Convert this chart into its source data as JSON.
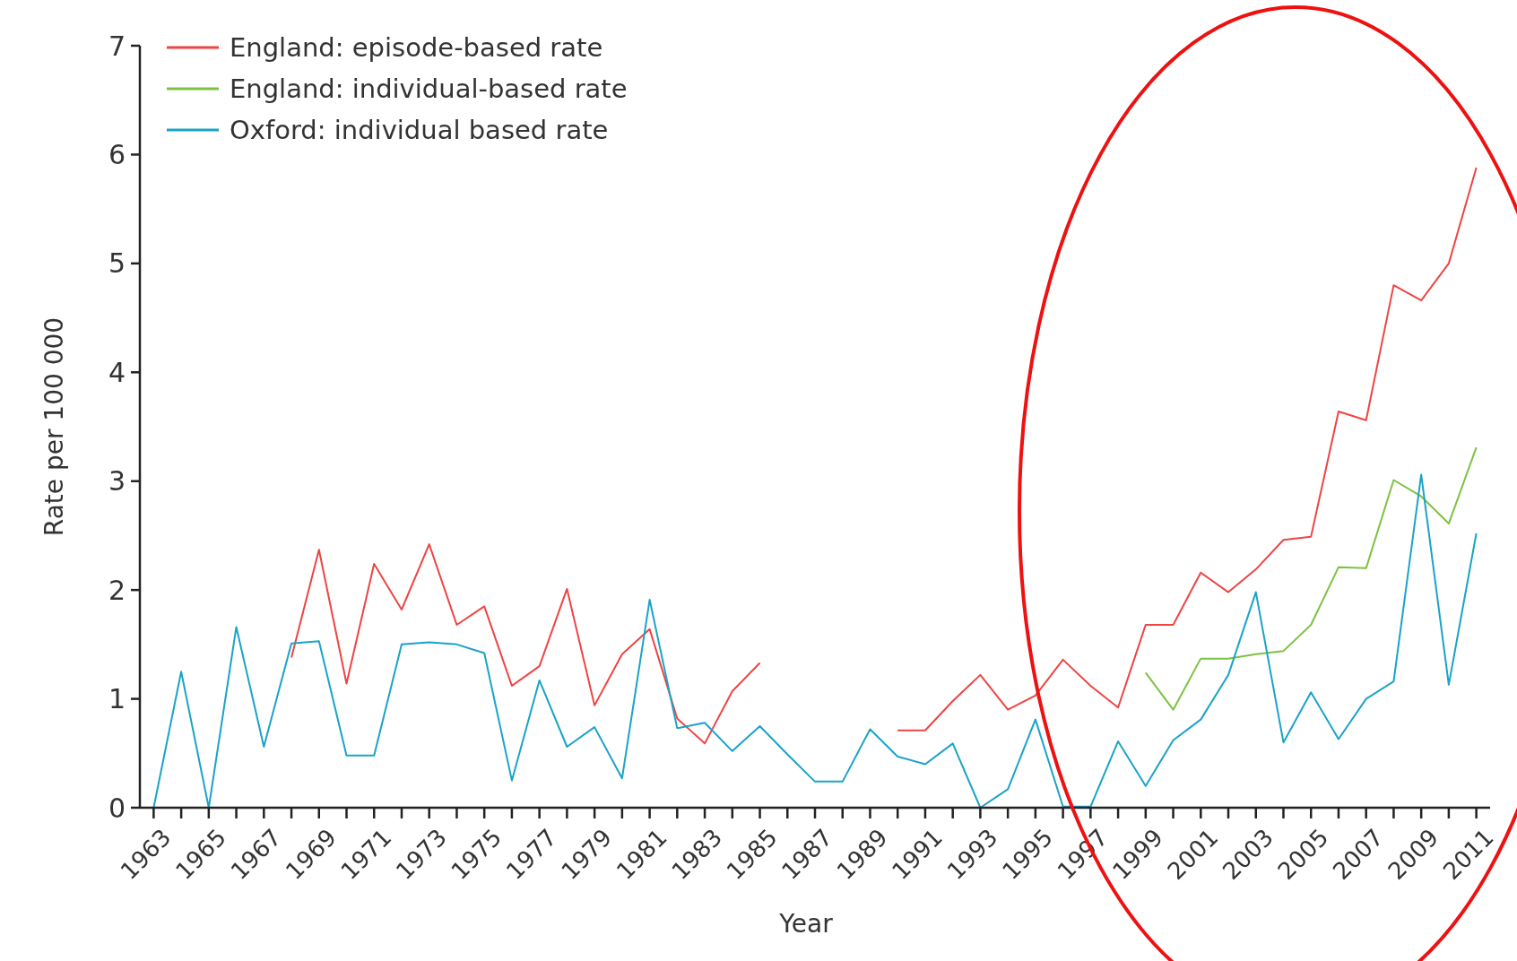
{
  "chart_data": {
    "type": "line",
    "xlabel": "Year",
    "ylabel": "Rate per 100 000",
    "x": [
      1963,
      1964,
      1965,
      1966,
      1967,
      1968,
      1969,
      1970,
      1971,
      1972,
      1973,
      1974,
      1975,
      1976,
      1977,
      1978,
      1979,
      1980,
      1981,
      1982,
      1983,
      1984,
      1985,
      1986,
      1987,
      1988,
      1989,
      1990,
      1991,
      1992,
      1993,
      1994,
      1995,
      1996,
      1997,
      1998,
      1999,
      2000,
      2001,
      2002,
      2003,
      2004,
      2005,
      2006,
      2007,
      2008,
      2009,
      2010,
      2011
    ],
    "series": [
      {
        "name": "England: episode-based rate",
        "color": "#ee4444",
        "values": [
          null,
          null,
          null,
          null,
          null,
          1.38,
          2.37,
          1.14,
          2.24,
          1.82,
          2.42,
          1.68,
          1.85,
          1.12,
          1.3,
          2.01,
          0.94,
          1.41,
          1.64,
          0.82,
          0.59,
          1.07,
          1.33,
          null,
          null,
          null,
          null,
          0.71,
          0.71,
          0.98,
          1.22,
          0.9,
          1.03,
          1.36,
          1.12,
          0.92,
          1.68,
          1.68,
          2.16,
          1.98,
          2.19,
          2.46,
          2.49,
          3.64,
          3.56,
          4.8,
          4.66,
          5.0,
          5.88
        ]
      },
      {
        "name": "England: individual-based rate",
        "color": "#7cc242",
        "values": [
          null,
          null,
          null,
          null,
          null,
          null,
          null,
          null,
          null,
          null,
          null,
          null,
          null,
          null,
          null,
          null,
          null,
          null,
          null,
          null,
          null,
          null,
          null,
          null,
          null,
          null,
          null,
          null,
          null,
          null,
          null,
          null,
          null,
          null,
          null,
          null,
          1.24,
          0.9,
          1.37,
          1.37,
          1.41,
          1.44,
          1.68,
          2.21,
          2.2,
          3.01,
          2.86,
          2.61,
          3.31
        ]
      },
      {
        "name": "Oxford: individual based rate",
        "color": "#1aa3c8",
        "values": [
          0,
          1.25,
          0,
          1.66,
          0.56,
          1.51,
          1.53,
          0.48,
          0.48,
          1.5,
          1.52,
          1.5,
          1.42,
          0.25,
          1.17,
          0.56,
          0.74,
          0.27,
          1.91,
          0.73,
          0.78,
          0.52,
          0.75,
          0.49,
          0.24,
          0.24,
          0.72,
          0.47,
          0.4,
          0.59,
          0,
          0.17,
          0.81,
          0.01,
          0.01,
          0.61,
          0.2,
          0.62,
          0.81,
          1.22,
          1.98,
          0.6,
          1.06,
          0.63,
          1.0,
          1.16,
          3.06,
          1.13,
          2.52
        ]
      }
    ],
    "xlim": [
      1962.5,
      2011.5
    ],
    "xticks": [
      1963,
      {
        "value": 1964,
        "label": null
      },
      1965,
      {
        "value": 1966,
        "label": null
      },
      1967,
      {
        "value": 1968,
        "label": null
      },
      1969,
      {
        "value": 1970,
        "label": null
      },
      1971,
      {
        "value": 1972,
        "label": null
      },
      1973,
      {
        "value": 1974,
        "label": null
      },
      1975,
      {
        "value": 1976,
        "label": null
      },
      1977,
      {
        "value": 1978,
        "label": null
      },
      1979,
      {
        "value": 1980,
        "label": null
      },
      1981,
      {
        "value": 1982,
        "label": null
      },
      1983,
      {
        "value": 1984,
        "label": null
      },
      1985,
      {
        "value": 1986,
        "label": null
      },
      1987,
      {
        "value": 1988,
        "label": null
      },
      1989,
      {
        "value": 1990,
        "label": null
      },
      1991,
      {
        "value": 1992,
        "label": null
      },
      1993,
      {
        "value": 1994,
        "label": null
      },
      1995,
      {
        "value": 1996,
        "label": null
      },
      1997,
      {
        "value": 1998,
        "label": null
      },
      1999,
      {
        "value": 2000,
        "label": null
      },
      2001,
      {
        "value": 2002,
        "label": null
      },
      2003,
      {
        "value": 2004,
        "label": null
      },
      2005,
      {
        "value": 2006,
        "label": null
      },
      2007,
      {
        "value": 2008,
        "label": null
      },
      2009,
      {
        "value": 2010,
        "label": null
      },
      2011
    ],
    "ylim": [
      0,
      7
    ],
    "yticks": [
      0,
      1,
      2,
      3,
      4,
      5,
      6,
      7
    ],
    "grid": false,
    "legend": "top left",
    "marker": "none",
    "line_style": "solid"
  }
}
